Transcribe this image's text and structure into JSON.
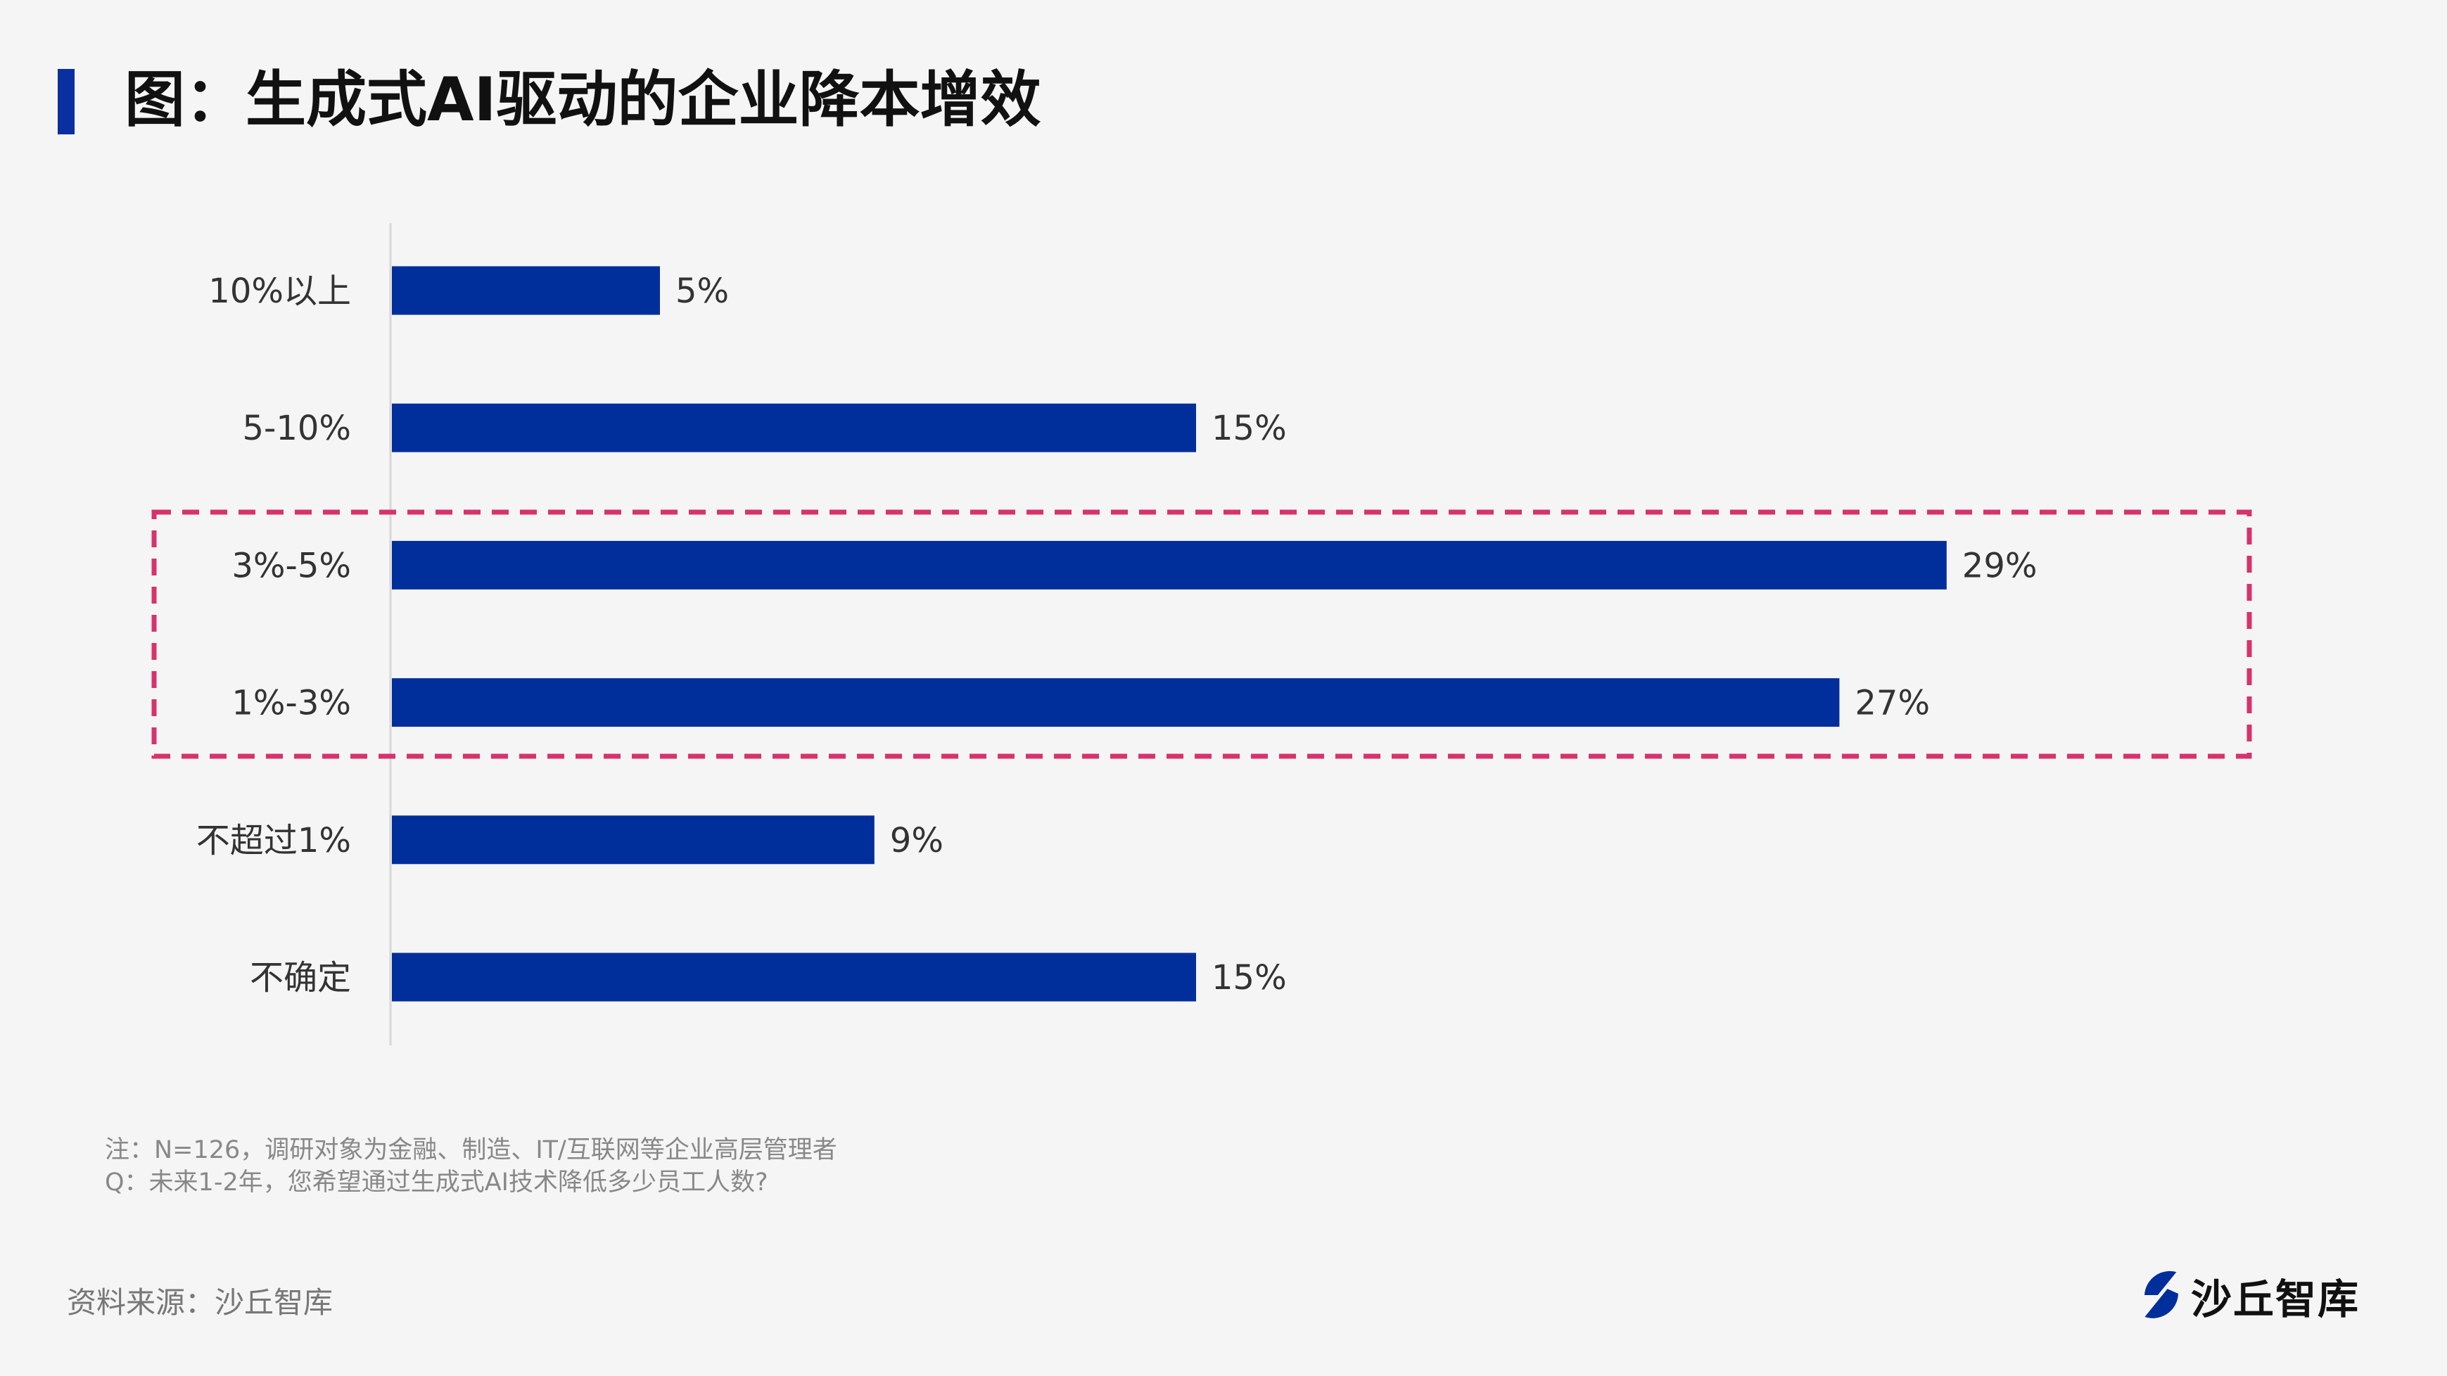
{
  "title": "图：生成式AI驱动的企业降本增效",
  "chart_data": {
    "type": "bar",
    "orientation": "horizontal",
    "categories": [
      "10%以上",
      "5-10%",
      "3%-5%",
      "1%-3%",
      "不超过1%",
      "不确定"
    ],
    "values": [
      5,
      15,
      29,
      27,
      9,
      15
    ],
    "value_labels": [
      "5%",
      "15%",
      "29%",
      "27%",
      "9%",
      "15%"
    ],
    "unit": "%",
    "xlim": [
      0,
      30
    ],
    "grid": false,
    "bar_color": "#002e9b",
    "highlight": {
      "categories": [
        "3%-5%",
        "1%-3%"
      ],
      "color": "#d6336c",
      "style": "dashed box"
    }
  },
  "notes": [
    "注：N=126，调研对象为金融、制造、IT/互联网等企业高层管理者",
    "Q：未来1-2年，您希望通过生成式AI技术降低多少员工人数?"
  ],
  "source": "资料来源：沙丘智库",
  "logo": {
    "text": "沙丘智库",
    "color": "#002e9b"
  }
}
